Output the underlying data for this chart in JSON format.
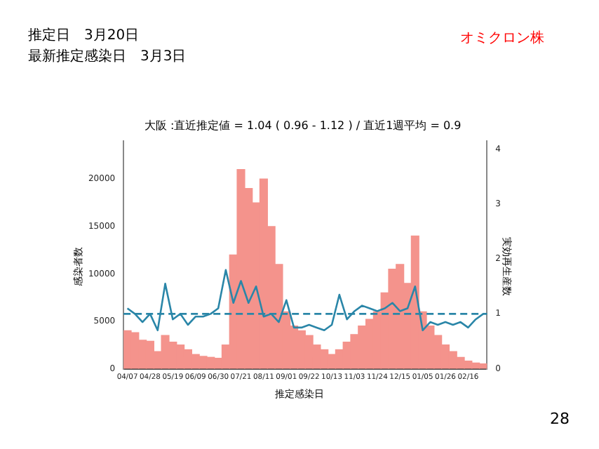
{
  "chart_data": {
    "type": "bar",
    "title": "大阪 :直近推定値 = 1.04 ( 0.96 - 1.12 ) / 直近1週平均 = 0.9",
    "xlabel": "推定感染日",
    "ylabel": "感染者数",
    "y2label": "実効再生産数",
    "annotations": [
      "推定日　3月20日",
      "最新推定感染日　3月3日",
      "オミクロン株",
      "28"
    ],
    "categories": [
      "04/07",
      null,
      null,
      "04/28",
      null,
      null,
      "05/19",
      null,
      null,
      "06/09",
      null,
      null,
      "06/30",
      null,
      null,
      "07/21",
      null,
      null,
      "08/11",
      null,
      null,
      "09/01",
      null,
      null,
      "09/22",
      null,
      null,
      "10/13",
      null,
      null,
      "11/03",
      null,
      null,
      "11/24",
      null,
      null,
      "12/15",
      null,
      null,
      "01/05",
      null,
      null,
      "01/26",
      null,
      null,
      "02/16",
      null,
      null
    ],
    "series": [
      {
        "color": "#f4938c",
        "values": [
          4000,
          3800,
          3000,
          2900,
          1800,
          3500,
          2800,
          2500,
          2000,
          1500,
          1300,
          1200,
          1100,
          2500,
          12000,
          21000,
          19000,
          17500,
          20000,
          15000,
          11000,
          6000,
          4500,
          4000,
          3500,
          2500,
          2000,
          1500,
          2000,
          2800,
          3600,
          4500,
          5200,
          6000,
          8000,
          10500,
          11000,
          9000,
          14000,
          6000,
          4500,
          3500,
          2500,
          1800,
          1200,
          800,
          600,
          500
        ]
      },
      {
        "type": "line",
        "axis": "y2",
        "color": "#2a86a8",
        "values": [
          1.1,
          1.0,
          0.85,
          1.0,
          0.7,
          1.55,
          0.9,
          1.0,
          0.8,
          0.95,
          0.95,
          1.0,
          1.1,
          1.8,
          1.2,
          1.6,
          1.2,
          1.5,
          0.95,
          1.0,
          0.85,
          1.25,
          0.75,
          0.75,
          0.8,
          0.75,
          0.7,
          0.8,
          1.35,
          0.9,
          1.05,
          1.15,
          1.1,
          1.05,
          1.1,
          1.2,
          1.05,
          1.1,
          1.5,
          0.7,
          0.85,
          0.8,
          0.85,
          0.8,
          0.85,
          0.75,
          0.9,
          1.0
        ]
      }
    ],
    "ylim": [
      0,
      24000
    ],
    "yticks": [
      0,
      5000,
      10000,
      15000,
      20000
    ],
    "y2lim": [
      0,
      4.15
    ],
    "y2ticks": [
      0,
      1,
      2,
      3,
      4
    ],
    "ref_lines": [
      {
        "axis": "y2",
        "value": 1,
        "color": "#2a86a8",
        "line_style": "dashed"
      }
    ],
    "marker": "none",
    "line_style": "solid",
    "grid": false,
    "legend": false
  }
}
